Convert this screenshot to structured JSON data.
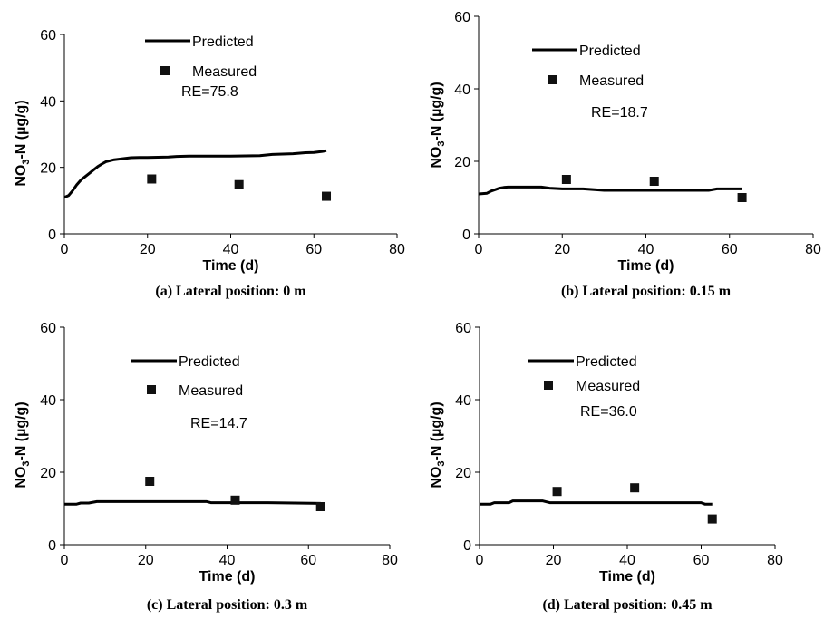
{
  "chart_data": [
    {
      "type": "line",
      "panel": "a",
      "caption": "(a) Lateral position: 0 m",
      "xlabel": "Time (d)",
      "ylabel": "NO3-N (µg/g)",
      "xlim": [
        0,
        80
      ],
      "ylim": [
        0,
        60
      ],
      "xticks": [
        0,
        20,
        40,
        60,
        80
      ],
      "yticks": [
        0,
        20,
        40,
        60
      ],
      "legend_placement": "top-center",
      "annotation": "RE=75.8",
      "series": [
        {
          "name": "Predicted",
          "kind": "line",
          "x": [
            0,
            1,
            2,
            3,
            4,
            5,
            6,
            7,
            8,
            9,
            10,
            12,
            14,
            16,
            18,
            20,
            25,
            27,
            30,
            40,
            47,
            50,
            55,
            58,
            60,
            62,
            63
          ],
          "y": [
            11,
            11.5,
            13,
            14.8,
            16.2,
            17.2,
            18.2,
            19.2,
            20.2,
            21,
            21.7,
            22.3,
            22.6,
            22.9,
            23,
            23,
            23.1,
            23.3,
            23.4,
            23.4,
            23.5,
            23.9,
            24.1,
            24.4,
            24.5,
            24.8,
            25
          ]
        },
        {
          "name": "Measured",
          "kind": "scatter",
          "x": [
            21,
            42,
            63
          ],
          "y": [
            16.5,
            14.8,
            11.3
          ]
        }
      ]
    },
    {
      "type": "line",
      "panel": "b",
      "caption": "(b) Lateral position: 0.15 m",
      "xlabel": "Time (d)",
      "ylabel": "NO3-N (µg/g)",
      "xlim": [
        0,
        80
      ],
      "ylim": [
        0,
        60
      ],
      "xticks": [
        0,
        20,
        40,
        60,
        80
      ],
      "yticks": [
        0,
        20,
        40,
        60
      ],
      "legend_placement": "top-center",
      "annotation": "RE=18.7",
      "series": [
        {
          "name": "Predicted",
          "kind": "line",
          "x": [
            0,
            2,
            3,
            4,
            5,
            6,
            7,
            15,
            17,
            20,
            25,
            30,
            40,
            55,
            57,
            63
          ],
          "y": [
            11,
            11.2,
            11.8,
            12.2,
            12.6,
            12.8,
            12.9,
            12.9,
            12.6,
            12.4,
            12.4,
            12,
            12,
            12,
            12.4,
            12.4
          ]
        },
        {
          "name": "Measured",
          "kind": "scatter",
          "x": [
            21,
            42,
            63
          ],
          "y": [
            15,
            14.5,
            10
          ]
        }
      ]
    },
    {
      "type": "line",
      "panel": "c",
      "caption": "(c) Lateral position: 0.3 m",
      "xlabel": "Time (d)",
      "ylabel": "NO3-N (µg/g)",
      "xlim": [
        0,
        80
      ],
      "ylim": [
        0,
        60
      ],
      "xticks": [
        0,
        20,
        40,
        60,
        80
      ],
      "yticks": [
        0,
        20,
        40,
        60
      ],
      "legend_placement": "top-center",
      "annotation": "RE=14.7",
      "series": [
        {
          "name": "Predicted",
          "kind": "line",
          "x": [
            0,
            3,
            4,
            6,
            8,
            20,
            35,
            36,
            50,
            63
          ],
          "y": [
            11.2,
            11.2,
            11.5,
            11.5,
            11.9,
            11.9,
            11.9,
            11.6,
            11.6,
            11.4
          ]
        },
        {
          "name": "Measured",
          "kind": "scatter",
          "x": [
            21,
            42,
            63
          ],
          "y": [
            17.5,
            12.3,
            10.5
          ]
        }
      ]
    },
    {
      "type": "line",
      "panel": "d",
      "caption": "(d) Lateral position: 0.45 m",
      "xlabel": "Time (d)",
      "ylabel": "NO3-N (µg/g)",
      "xlim": [
        0,
        80
      ],
      "ylim": [
        0,
        60
      ],
      "xticks": [
        0,
        20,
        40,
        60,
        80
      ],
      "yticks": [
        0,
        20,
        40,
        60
      ],
      "legend_placement": "top-center",
      "annotation": "RE=36.0",
      "series": [
        {
          "name": "Predicted",
          "kind": "line",
          "x": [
            0,
            3,
            4,
            8,
            9,
            17,
            19,
            30,
            45,
            60,
            61,
            63
          ],
          "y": [
            11.2,
            11.2,
            11.6,
            11.6,
            12.1,
            12.1,
            11.6,
            11.6,
            11.6,
            11.6,
            11.2,
            11.2
          ]
        },
        {
          "name": "Measured",
          "kind": "scatter",
          "x": [
            21,
            42,
            63
          ],
          "y": [
            14.7,
            15.7,
            7.1
          ]
        }
      ]
    }
  ]
}
